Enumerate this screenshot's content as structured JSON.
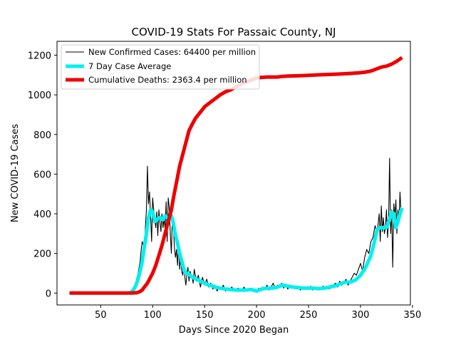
{
  "chart_data": {
    "type": "line",
    "title": "COVID-19 Stats For Passaic County, NJ",
    "xlabel": "Days Since 2020 Began",
    "ylabel": "New COVID-19 Cases",
    "xlim": [
      8,
      348
    ],
    "ylim": [
      -60,
      1270
    ],
    "xticks": [
      50,
      100,
      150,
      200,
      250,
      300,
      350
    ],
    "yticks": [
      0,
      200,
      400,
      600,
      800,
      1000,
      1200
    ],
    "grid": false,
    "legend_position": "top-left",
    "series": [
      {
        "name": "New Confirmed Cases: 64400 per million",
        "color": "#000000",
        "style": "thin",
        "points": [
          [
            20,
            0
          ],
          [
            30,
            0
          ],
          [
            40,
            0
          ],
          [
            50,
            0
          ],
          [
            60,
            0
          ],
          [
            70,
            0
          ],
          [
            76,
            0
          ],
          [
            78,
            5
          ],
          [
            80,
            15
          ],
          [
            82,
            30
          ],
          [
            84,
            60
          ],
          [
            86,
            100
          ],
          [
            88,
            160
          ],
          [
            89,
            220
          ],
          [
            90,
            260
          ],
          [
            91,
            240
          ],
          [
            92,
            200
          ],
          [
            93,
            330
          ],
          [
            94,
            420
          ],
          [
            95,
            640
          ],
          [
            96,
            450
          ],
          [
            97,
            510
          ],
          [
            98,
            390
          ],
          [
            99,
            260
          ],
          [
            100,
            480
          ],
          [
            101,
            420
          ],
          [
            102,
            380
          ],
          [
            103,
            330
          ],
          [
            104,
            410
          ],
          [
            105,
            290
          ],
          [
            106,
            420
          ],
          [
            107,
            360
          ],
          [
            108,
            310
          ],
          [
            109,
            400
          ],
          [
            110,
            330
          ],
          [
            111,
            380
          ],
          [
            112,
            320
          ],
          [
            113,
            460
          ],
          [
            114,
            260
          ],
          [
            115,
            480
          ],
          [
            116,
            430
          ],
          [
            117,
            300
          ],
          [
            118,
            200
          ],
          [
            119,
            380
          ],
          [
            120,
            330
          ],
          [
            121,
            230
          ],
          [
            122,
            180
          ],
          [
            123,
            220
          ],
          [
            124,
            140
          ],
          [
            125,
            260
          ],
          [
            126,
            120
          ],
          [
            127,
            180
          ],
          [
            128,
            110
          ],
          [
            129,
            90
          ],
          [
            130,
            150
          ],
          [
            131,
            80
          ],
          [
            132,
            40
          ],
          [
            133,
            100
          ],
          [
            134,
            130
          ],
          [
            135,
            60
          ],
          [
            136,
            110
          ],
          [
            137,
            90
          ],
          [
            138,
            80
          ],
          [
            139,
            50
          ],
          [
            140,
            120
          ],
          [
            142,
            60
          ],
          [
            144,
            90
          ],
          [
            146,
            30
          ],
          [
            148,
            80
          ],
          [
            150,
            40
          ],
          [
            152,
            70
          ],
          [
            154,
            30
          ],
          [
            156,
            50
          ],
          [
            158,
            20
          ],
          [
            160,
            40
          ],
          [
            162,
            10
          ],
          [
            164,
            30
          ],
          [
            166,
            20
          ],
          [
            168,
            40
          ],
          [
            170,
            10
          ],
          [
            172,
            25
          ],
          [
            174,
            15
          ],
          [
            176,
            30
          ],
          [
            178,
            20
          ],
          [
            180,
            10
          ],
          [
            182,
            25
          ],
          [
            184,
            20
          ],
          [
            186,
            15
          ],
          [
            188,
            30
          ],
          [
            190,
            10
          ],
          [
            192,
            20
          ],
          [
            194,
            15
          ],
          [
            196,
            20
          ],
          [
            198,
            10
          ],
          [
            200,
            5
          ],
          [
            202,
            25
          ],
          [
            204,
            15
          ],
          [
            206,
            30
          ],
          [
            208,
            20
          ],
          [
            210,
            40
          ],
          [
            212,
            15
          ],
          [
            214,
            30
          ],
          [
            216,
            50
          ],
          [
            218,
            20
          ],
          [
            220,
            40
          ],
          [
            222,
            30
          ],
          [
            224,
            50
          ],
          [
            226,
            25
          ],
          [
            228,
            45
          ],
          [
            230,
            20
          ],
          [
            232,
            40
          ],
          [
            234,
            25
          ],
          [
            236,
            35
          ],
          [
            238,
            20
          ],
          [
            240,
            30
          ],
          [
            242,
            15
          ],
          [
            244,
            25
          ],
          [
            246,
            20
          ],
          [
            248,
            30
          ],
          [
            250,
            20
          ],
          [
            252,
            35
          ],
          [
            254,
            15
          ],
          [
            256,
            25
          ],
          [
            258,
            20
          ],
          [
            260,
            30
          ],
          [
            262,
            20
          ],
          [
            264,
            35
          ],
          [
            266,
            25
          ],
          [
            268,
            30
          ],
          [
            270,
            20
          ],
          [
            272,
            35
          ],
          [
            274,
            40
          ],
          [
            276,
            50
          ],
          [
            278,
            30
          ],
          [
            280,
            60
          ],
          [
            282,
            40
          ],
          [
            284,
            50
          ],
          [
            286,
            70
          ],
          [
            288,
            40
          ],
          [
            290,
            60
          ],
          [
            292,
            80
          ],
          [
            294,
            100
          ],
          [
            296,
            90
          ],
          [
            298,
            120
          ],
          [
            300,
            150
          ],
          [
            302,
            110
          ],
          [
            304,
            180
          ],
          [
            306,
            220
          ],
          [
            308,
            200
          ],
          [
            310,
            260
          ],
          [
            312,
            280
          ],
          [
            314,
            340
          ],
          [
            316,
            300
          ],
          [
            318,
            400
          ],
          [
            319,
            260
          ],
          [
            320,
            440
          ],
          [
            321,
            310
          ],
          [
            322,
            380
          ],
          [
            323,
            300
          ],
          [
            324,
            330
          ],
          [
            325,
            420
          ],
          [
            326,
            280
          ],
          [
            327,
            360
          ],
          [
            328,
            680
          ],
          [
            329,
            300
          ],
          [
            330,
            420
          ],
          [
            331,
            130
          ],
          [
            332,
            450
          ],
          [
            333,
            380
          ],
          [
            334,
            470
          ],
          [
            335,
            300
          ],
          [
            336,
            420
          ],
          [
            337,
            360
          ],
          [
            338,
            510
          ],
          [
            339,
            400
          ],
          [
            340,
            400
          ]
        ]
      },
      {
        "name": "7 Day Case Average",
        "color": "#00f0f0",
        "style": "thick",
        "points": [
          [
            78,
            0
          ],
          [
            80,
            8
          ],
          [
            82,
            20
          ],
          [
            84,
            40
          ],
          [
            86,
            70
          ],
          [
            88,
            110
          ],
          [
            90,
            160
          ],
          [
            92,
            230
          ],
          [
            94,
            300
          ],
          [
            96,
            380
          ],
          [
            98,
            420
          ],
          [
            100,
            410
          ],
          [
            102,
            360
          ],
          [
            104,
            370
          ],
          [
            106,
            380
          ],
          [
            108,
            380
          ],
          [
            110,
            370
          ],
          [
            112,
            390
          ],
          [
            114,
            380
          ],
          [
            116,
            380
          ],
          [
            118,
            390
          ],
          [
            120,
            350
          ],
          [
            122,
            290
          ],
          [
            124,
            250
          ],
          [
            126,
            200
          ],
          [
            128,
            160
          ],
          [
            130,
            120
          ],
          [
            132,
            100
          ],
          [
            134,
            100
          ],
          [
            136,
            90
          ],
          [
            138,
            80
          ],
          [
            140,
            75
          ],
          [
            142,
            70
          ],
          [
            144,
            65
          ],
          [
            146,
            60
          ],
          [
            148,
            55
          ],
          [
            150,
            50
          ],
          [
            152,
            45
          ],
          [
            154,
            40
          ],
          [
            156,
            38
          ],
          [
            158,
            35
          ],
          [
            160,
            30
          ],
          [
            165,
            25
          ],
          [
            170,
            20
          ],
          [
            175,
            18
          ],
          [
            180,
            15
          ],
          [
            185,
            15
          ],
          [
            190,
            15
          ],
          [
            195,
            18
          ],
          [
            200,
            10
          ],
          [
            205,
            20
          ],
          [
            210,
            25
          ],
          [
            215,
            25
          ],
          [
            220,
            30
          ],
          [
            225,
            40
          ],
          [
            230,
            35
          ],
          [
            235,
            30
          ],
          [
            240,
            28
          ],
          [
            245,
            25
          ],
          [
            250,
            25
          ],
          [
            255,
            25
          ],
          [
            260,
            22
          ],
          [
            265,
            25
          ],
          [
            270,
            30
          ],
          [
            275,
            35
          ],
          [
            280,
            45
          ],
          [
            285,
            55
          ],
          [
            290,
            55
          ],
          [
            295,
            65
          ],
          [
            300,
            90
          ],
          [
            305,
            130
          ],
          [
            310,
            190
          ],
          [
            313,
            250
          ],
          [
            316,
            320
          ],
          [
            319,
            330
          ],
          [
            322,
            330
          ],
          [
            325,
            330
          ],
          [
            328,
            370
          ],
          [
            330,
            410
          ],
          [
            332,
            400
          ],
          [
            334,
            330
          ],
          [
            336,
            360
          ],
          [
            338,
            400
          ],
          [
            340,
            430
          ]
        ]
      },
      {
        "name": "Cumulative Deaths: 2363.4 per million",
        "color": "#ee0000",
        "style": "thick",
        "points": [
          [
            20,
            0
          ],
          [
            30,
            0
          ],
          [
            40,
            0
          ],
          [
            50,
            0
          ],
          [
            60,
            0
          ],
          [
            70,
            0
          ],
          [
            75,
            0
          ],
          [
            80,
            0
          ],
          [
            85,
            2
          ],
          [
            88,
            8
          ],
          [
            90,
            15
          ],
          [
            92,
            30
          ],
          [
            95,
            50
          ],
          [
            98,
            80
          ],
          [
            100,
            100
          ],
          [
            103,
            140
          ],
          [
            106,
            190
          ],
          [
            109,
            240
          ],
          [
            112,
            300
          ],
          [
            115,
            360
          ],
          [
            118,
            420
          ],
          [
            120,
            480
          ],
          [
            123,
            560
          ],
          [
            126,
            640
          ],
          [
            129,
            700
          ],
          [
            132,
            760
          ],
          [
            135,
            820
          ],
          [
            138,
            850
          ],
          [
            141,
            880
          ],
          [
            144,
            900
          ],
          [
            147,
            920
          ],
          [
            150,
            940
          ],
          [
            155,
            960
          ],
          [
            160,
            980
          ],
          [
            165,
            1000
          ],
          [
            170,
            1015
          ],
          [
            175,
            1025
          ],
          [
            180,
            1040
          ],
          [
            185,
            1055
          ],
          [
            190,
            1065
          ],
          [
            195,
            1075
          ],
          [
            200,
            1085
          ],
          [
            205,
            1088
          ],
          [
            210,
            1090
          ],
          [
            215,
            1090
          ],
          [
            220,
            1090
          ],
          [
            225,
            1093
          ],
          [
            230,
            1095
          ],
          [
            240,
            1096
          ],
          [
            250,
            1098
          ],
          [
            260,
            1101
          ],
          [
            270,
            1103
          ],
          [
            280,
            1105
          ],
          [
            290,
            1108
          ],
          [
            300,
            1112
          ],
          [
            305,
            1115
          ],
          [
            310,
            1120
          ],
          [
            315,
            1130
          ],
          [
            320,
            1140
          ],
          [
            325,
            1145
          ],
          [
            330,
            1155
          ],
          [
            335,
            1170
          ],
          [
            340,
            1188
          ]
        ]
      }
    ]
  }
}
